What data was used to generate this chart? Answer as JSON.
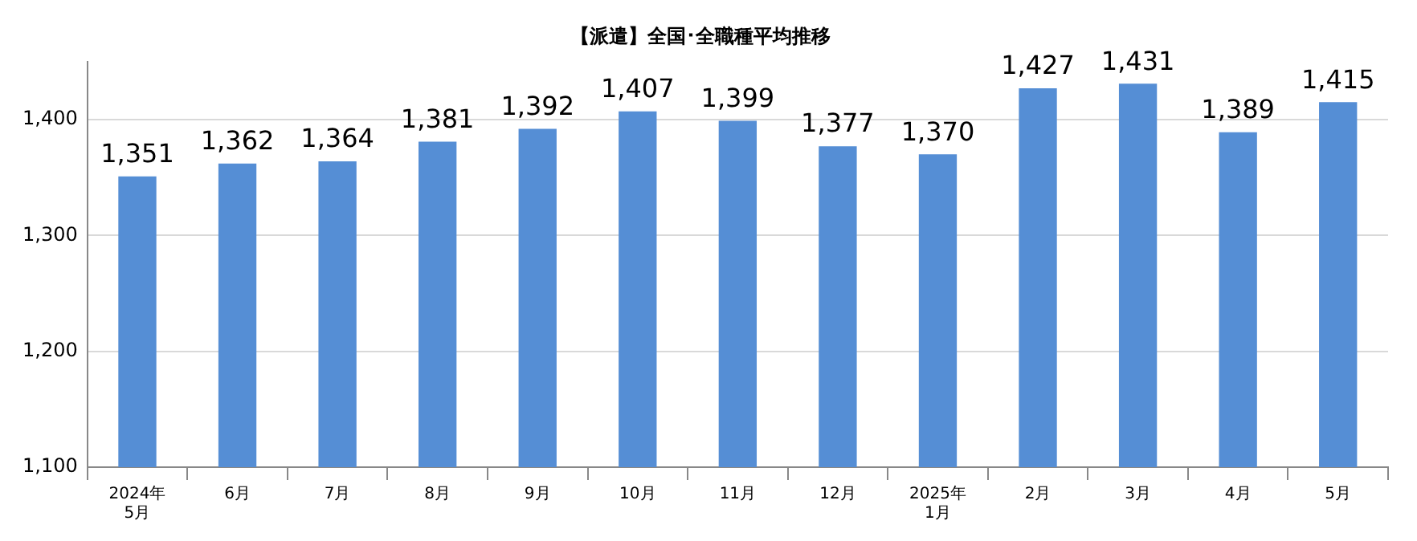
{
  "chart_data": {
    "type": "bar",
    "title": "【派遣】全国･全職種平均推移",
    "categories": [
      "2024年\n5月",
      "6月",
      "7月",
      "8月",
      "9月",
      "10月",
      "11月",
      "12月",
      "2025年\n1月",
      "2月",
      "3月",
      "4月",
      "5月"
    ],
    "values": [
      1351,
      1362,
      1364,
      1381,
      1392,
      1407,
      1399,
      1377,
      1370,
      1427,
      1431,
      1389,
      1415
    ],
    "value_labels": [
      "1,351",
      "1,362",
      "1,364",
      "1,381",
      "1,392",
      "1,407",
      "1,399",
      "1,377",
      "1,370",
      "1,427",
      "1,431",
      "1,389",
      "1,415"
    ],
    "color": "#558ed5",
    "ylim": [
      1100,
      1450
    ],
    "yticks": [
      {
        "value": 1100,
        "label": "1,100"
      },
      {
        "value": 1200,
        "label": "1,200"
      },
      {
        "value": 1300,
        "label": "1,300"
      },
      {
        "value": 1400,
        "label": "1,400"
      }
    ],
    "grid": "y",
    "legend": false
  }
}
